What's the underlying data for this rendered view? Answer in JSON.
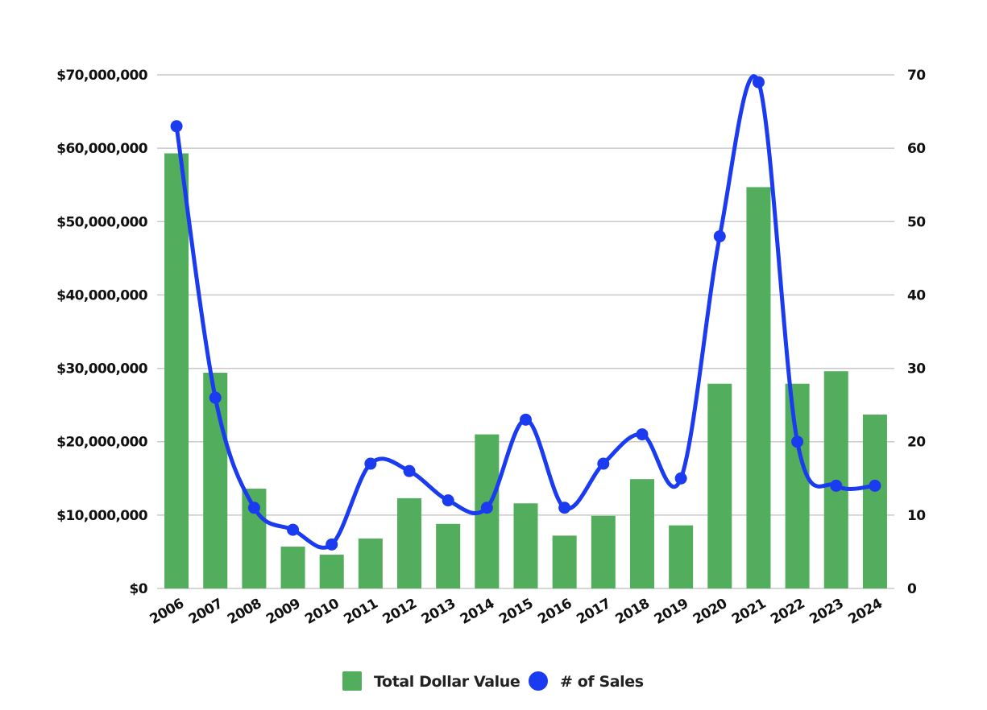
{
  "chart_data": {
    "type": "bar",
    "title": "",
    "xlabel": "",
    "ylabel": "",
    "categories": [
      "2006",
      "2007",
      "2008",
      "2009",
      "2010",
      "2011",
      "2012",
      "2013",
      "2014",
      "2015",
      "2016",
      "2017",
      "2018",
      "2019",
      "2020",
      "2021",
      "2022",
      "2023",
      "2024"
    ],
    "series": [
      {
        "name": "Total Dollar Value",
        "type": "bar",
        "axis": "left",
        "color": "#52ad5c",
        "values": [
          59300000,
          29400000,
          13600000,
          5700000,
          4600000,
          6800000,
          12300000,
          8800000,
          21000000,
          11600000,
          7200000,
          9900000,
          14900000,
          8600000,
          27900000,
          54700000,
          27900000,
          29600000,
          23700000
        ]
      },
      {
        "name": "# of Sales",
        "type": "line",
        "axis": "right",
        "color": "#1a3bf0",
        "smooth": true,
        "values": [
          63,
          26,
          11,
          8,
          6,
          17,
          16,
          12,
          11,
          23,
          11,
          17,
          21,
          15,
          48,
          69,
          20,
          14,
          14
        ]
      }
    ],
    "y_left": {
      "ylim": [
        0,
        70000000
      ],
      "tick_labels": [
        "$0",
        "$10,000,000",
        "$20,000,000",
        "$30,000,000",
        "$40,000,000",
        "$50,000,000",
        "$60,000,000",
        "$70,000,000"
      ]
    },
    "y_right": {
      "ylim": [
        0,
        70
      ],
      "tick_labels": [
        "0",
        "10",
        "20",
        "30",
        "40",
        "50",
        "60",
        "70"
      ]
    },
    "grid": true,
    "legend": {
      "position": "bottom",
      "entries": [
        "Total Dollar Value",
        "# of Sales"
      ]
    }
  }
}
